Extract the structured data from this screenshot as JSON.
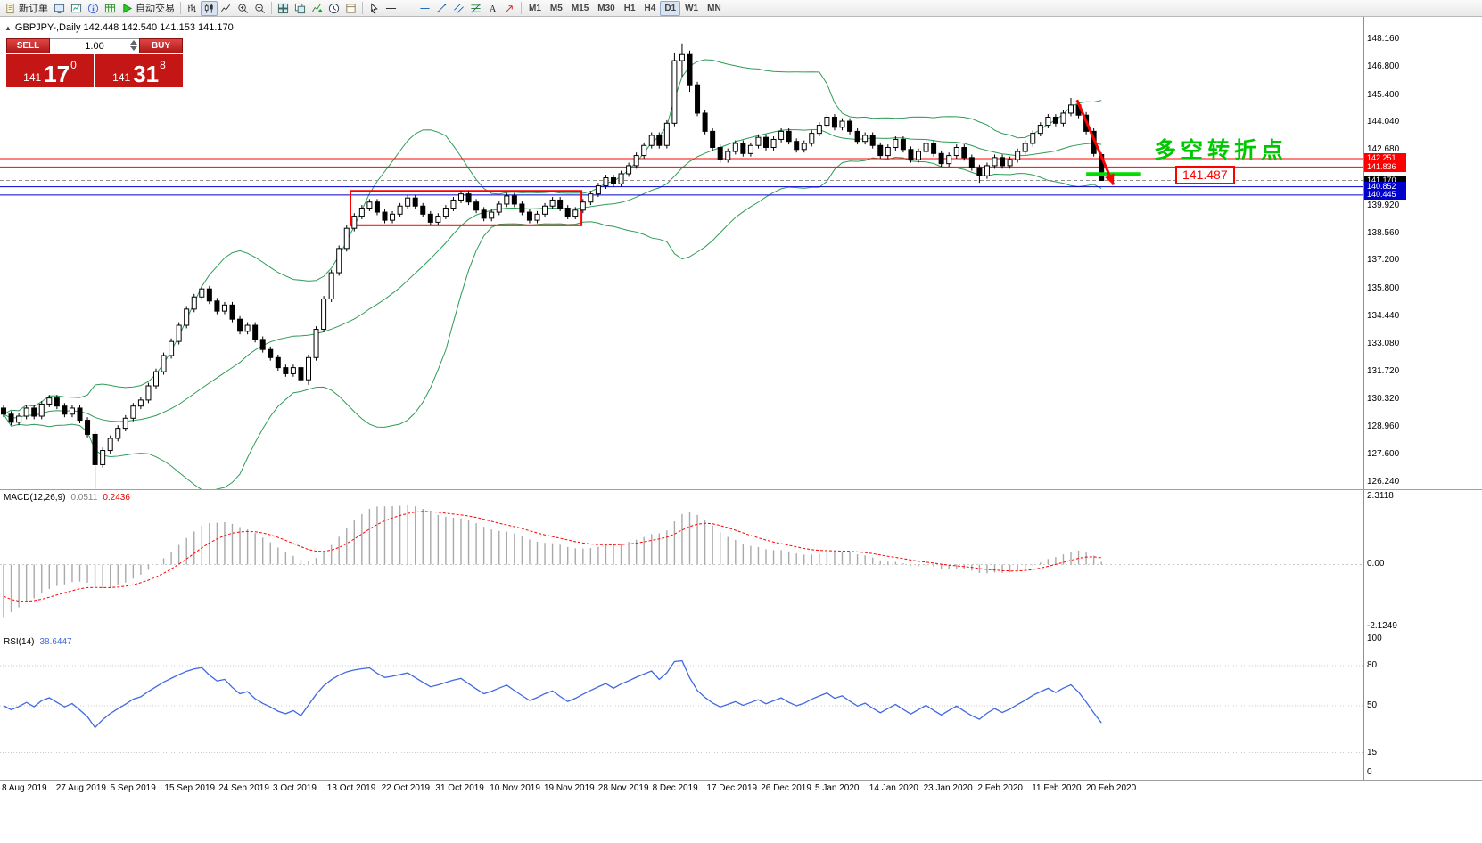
{
  "toolbar": {
    "items": [
      {
        "name": "new-order-button",
        "icon": "doc-icon",
        "label": "新订单"
      },
      {
        "name": "market-watch-button",
        "icon": "monitor-icon"
      },
      {
        "name": "data-window-button",
        "icon": "chartwin-icon"
      },
      {
        "name": "navigator-button",
        "icon": "info-icon"
      },
      {
        "name": "terminal-button",
        "icon": "grid-icon"
      },
      {
        "name": "autotrading-button",
        "icon": "play-icon",
        "label": "自动交易"
      },
      {
        "sep": true
      },
      {
        "name": "bar-chart-button",
        "icon": "bars-icon"
      },
      {
        "name": "candlestick-chart-button",
        "icon": "candles-icon",
        "active": true
      },
      {
        "name": "line-chart-button",
        "icon": "linechart-icon"
      },
      {
        "name": "zoom-in-button",
        "icon": "zoomin-icon"
      },
      {
        "name": "zoom-out-button",
        "icon": "zoomout-icon"
      },
      {
        "sep": true
      },
      {
        "name": "tile-windows-button",
        "icon": "tile-icon"
      },
      {
        "name": "cascade-windows-button",
        "icon": "cascade-icon"
      },
      {
        "name": "indicators-button",
        "icon": "indicator-icon"
      },
      {
        "name": "periods-button",
        "icon": "clock-icon"
      },
      {
        "name": "templates-button",
        "icon": "template-icon"
      },
      {
        "sep": true
      },
      {
        "name": "cursor-tool-button",
        "icon": "cursor-icon"
      },
      {
        "name": "crosshair-tool-button",
        "icon": "crosshair-icon"
      },
      {
        "name": "vertical-line-tool-button",
        "icon": "vline-icon"
      },
      {
        "name": "horizontal-line-tool-button",
        "icon": "hline-icon"
      },
      {
        "name": "trendline-tool-button",
        "icon": "trendline-icon"
      },
      {
        "name": "channel-tool-button",
        "icon": "channel-icon"
      },
      {
        "name": "fibonacci-tool-button",
        "icon": "fibo-icon"
      },
      {
        "name": "text-tool-button",
        "icon": "text-icon"
      },
      {
        "name": "arrows-tool-button",
        "icon": "arrow-icon"
      },
      {
        "sep": true
      },
      {
        "name": "timeframe-m1",
        "label": "M1",
        "tf": true
      },
      {
        "name": "timeframe-m5",
        "label": "M5",
        "tf": true
      },
      {
        "name": "timeframe-m15",
        "label": "M15",
        "tf": true
      },
      {
        "name": "timeframe-m30",
        "label": "M30",
        "tf": true
      },
      {
        "name": "timeframe-h1",
        "label": "H1",
        "tf": true
      },
      {
        "name": "timeframe-h4",
        "label": "H4",
        "tf": true
      },
      {
        "name": "timeframe-d1",
        "label": "D1",
        "tf": true,
        "active": true
      },
      {
        "name": "timeframe-w1",
        "label": "W1",
        "tf": true
      },
      {
        "name": "timeframe-mn",
        "label": "MN",
        "tf": true
      }
    ]
  },
  "chart": {
    "title": "GBPJPY-,Daily  142.448 142.540 141.153 141.170",
    "trade_panel": {
      "sell_label": "SELL",
      "buy_label": "BUY",
      "volume": "1.00",
      "sell_price": {
        "prefix": "141",
        "main": "17",
        "sup": "0"
      },
      "buy_price": {
        "prefix": "141",
        "main": "31",
        "sup": "8"
      }
    },
    "annotations": {
      "turning_point_text": "多空转折点",
      "price_box": "141.487"
    }
  },
  "indicators": {
    "macd_label": "MACD(12,26,9)",
    "macd_value": "0.0511",
    "macd_signal": "0.2436",
    "macd_scale_top": "2.3118",
    "macd_scale_mid": "0.00",
    "macd_scale_bottom": "-2.1249",
    "rsi_label": "RSI(14)",
    "rsi_value": "38.6447"
  },
  "chart_data": {
    "type": "candlestick",
    "symbol": "GBPJPY-",
    "period": "Daily",
    "current_bar": {
      "open": 142.448,
      "high": 142.54,
      "low": 141.153,
      "close": 141.17
    },
    "bid": 141.17,
    "ask": 141.318,
    "ylim": [
      125.9,
      149.3
    ],
    "price_axis_labels": [
      "148.160",
      "146.800",
      "145.400",
      "144.040",
      "142.680",
      "139.920",
      "138.560",
      "137.200",
      "135.800",
      "134.440",
      "133.080",
      "131.720",
      "130.320",
      "128.960",
      "127.600",
      "126.240"
    ],
    "price_tags": [
      {
        "price": 142.251,
        "label": "142.251",
        "color": "#ff0000"
      },
      {
        "price": 141.836,
        "label": "141.836",
        "color": "#ff0000"
      },
      {
        "price": 141.17,
        "label": "141.170",
        "color": "#000000"
      },
      {
        "price": 140.852,
        "label": "140.852",
        "color": "#0000cc"
      },
      {
        "price": 140.445,
        "label": "140.445",
        "color": "#0000cc"
      }
    ],
    "horizontal_lines": [
      {
        "price": 142.251,
        "color": "#ff0000",
        "style": "solid"
      },
      {
        "price": 141.836,
        "color": "#ff0000",
        "style": "solid"
      },
      {
        "price": 141.17,
        "color": "#909090",
        "style": "dashed"
      },
      {
        "price": 140.852,
        "color": "#0000cc",
        "style": "solid"
      },
      {
        "price": 140.445,
        "color": "#0000cc",
        "style": "solid"
      }
    ],
    "green_segment": {
      "price": 141.487,
      "x_from_index": 142,
      "x_to_index": 149.2,
      "color": "#00dd00"
    },
    "red_rectangle": {
      "from_index": 45.5,
      "to_index": 75.8,
      "price_top": 140.65,
      "price_bottom": 138.95,
      "color": "#ff0000"
    },
    "red_arrow": {
      "from_index": 140.8,
      "price_from": 145.15,
      "to_index": 145.6,
      "price_to": 140.95,
      "color": "#ff0000"
    },
    "bollinger_bands": {
      "period": 20,
      "deviation": 2,
      "color": "#2e9b57"
    },
    "first_open": 129.9,
    "default_wick": 0.15,
    "closes": [
      129.6,
      129.2,
      129.5,
      129.9,
      129.5,
      130.1,
      130.4,
      130.0,
      129.6,
      129.9,
      129.3,
      128.6,
      127.1,
      127.8,
      128.4,
      128.9,
      129.4,
      130.0,
      130.3,
      131.0,
      131.7,
      132.5,
      133.2,
      134.0,
      134.8,
      135.4,
      135.8,
      135.2,
      134.7,
      135.0,
      134.3,
      133.7,
      134.0,
      133.3,
      132.8,
      132.4,
      131.9,
      131.6,
      131.9,
      131.3,
      132.4,
      133.8,
      135.3,
      136.6,
      137.8,
      138.8,
      139.4,
      139.8,
      140.1,
      139.6,
      139.2,
      139.5,
      139.9,
      140.3,
      139.9,
      139.5,
      139.1,
      139.4,
      139.8,
      140.2,
      140.5,
      140.1,
      139.7,
      139.3,
      139.6,
      140.0,
      140.4,
      140.0,
      139.6,
      139.2,
      139.5,
      139.9,
      140.2,
      139.8,
      139.4,
      139.7,
      140.1,
      140.5,
      140.9,
      141.3,
      141.0,
      141.5,
      141.9,
      142.4,
      142.9,
      143.4,
      142.9,
      144.0,
      147.1,
      147.4,
      145.9,
      144.5,
      143.6,
      142.8,
      142.2,
      142.6,
      143.0,
      142.5,
      142.9,
      143.3,
      142.8,
      143.2,
      143.6,
      143.1,
      142.7,
      143.0,
      143.5,
      143.9,
      144.3,
      143.8,
      144.1,
      143.6,
      143.1,
      143.4,
      142.9,
      142.4,
      142.8,
      143.2,
      142.7,
      142.2,
      142.6,
      143.0,
      142.5,
      142.0,
      142.4,
      142.8,
      142.3,
      141.8,
      141.4,
      141.9,
      142.3,
      141.9,
      142.2,
      142.6,
      143.0,
      143.5,
      143.9,
      144.3,
      144.0,
      144.5,
      144.9,
      144.4,
      143.6,
      142.5,
      141.17
    ],
    "candle_overrides": {
      "12": [
        128.6,
        128.75,
        125.9,
        127.1
      ],
      "40": [
        131.3,
        132.55,
        131.05,
        132.4
      ],
      "88": [
        144.0,
        147.5,
        143.85,
        147.1
      ],
      "89": [
        147.1,
        147.95,
        146.3,
        147.4
      ],
      "90": [
        147.4,
        147.6,
        145.55,
        145.9
      ],
      "128": [
        141.8,
        141.95,
        141.05,
        141.4
      ],
      "140": [
        144.5,
        145.25,
        144.35,
        144.9
      ],
      "144": [
        142.448,
        142.54,
        141.153,
        141.17
      ]
    },
    "date_labels": [
      "8 Aug 2019",
      "27 Aug 2019",
      "5 Sep 2019",
      "15 Sep 2019",
      "24 Sep 2019",
      "3 Oct 2019",
      "13 Oct 2019",
      "22 Oct 2019",
      "31 Oct 2019",
      "10 Nov 2019",
      "19 Nov 2019",
      "28 Nov 2019",
      "8 Dec 2019",
      "17 Dec 2019",
      "26 Dec 2019",
      "5 Jan 2020",
      "14 Jan 2020",
      "23 Jan 2020",
      "2 Feb 2020",
      "11 Feb 2020",
      "20 Feb 2020"
    ],
    "macd": {
      "label": "MACD(12,26,9)",
      "value": 0.0511,
      "signal_value": 0.2436,
      "scale_top": 2.3118,
      "scale_bottom": -2.1249,
      "histogram_color": "#a9a9a9",
      "signal_color": "#ff0000"
    },
    "rsi": {
      "label": "RSI(14)",
      "value": 38.6447,
      "scale_labels": [
        "100",
        "80",
        "50",
        "15",
        "0"
      ],
      "scale_values": [
        100,
        80,
        50,
        15,
        0
      ],
      "level_lines": [
        80,
        50,
        15
      ],
      "line_color": "#4169e1"
    }
  }
}
